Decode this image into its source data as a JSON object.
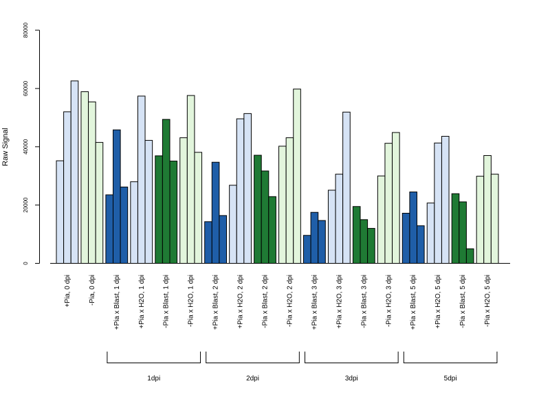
{
  "chart_data": {
    "type": "bar",
    "ylabel": "Raw Signal",
    "ylim": [
      0,
      80000
    ],
    "yticks": [
      0,
      20000,
      40000,
      60000,
      80000
    ],
    "colors": {
      "pia_pos_light": "#d6e3f5",
      "pia_neg_light": "#e2f5dc",
      "pia_pos_dark": "#1f5ea8",
      "pia_neg_dark": "#1f7a34"
    },
    "groups": [
      {
        "label": "+Pia, 0 dpi",
        "color": "pia_pos_light",
        "values": [
          35200,
          52000,
          62600
        ]
      },
      {
        "label": "-Pia, 0 dpi",
        "color": "pia_neg_light",
        "values": [
          58900,
          55400,
          41500
        ]
      },
      {
        "label": "+Pia x Blast, 1 dpi",
        "color": "pia_pos_dark",
        "values": [
          23500,
          45800,
          26200
        ]
      },
      {
        "label": "+Pia x H2O, 1 dpi",
        "color": "pia_pos_light",
        "values": [
          28000,
          57400,
          42200
        ]
      },
      {
        "label": "-Pia x Blast, 1 dpi",
        "color": "pia_neg_dark",
        "values": [
          36900,
          49400,
          35100
        ]
      },
      {
        "label": "-Pia x H2O, 1 dpi",
        "color": "pia_neg_light",
        "values": [
          43100,
          57600,
          38100
        ]
      },
      {
        "label": "+Pia x Blast, 2 dpi",
        "color": "pia_pos_dark",
        "values": [
          14300,
          34700,
          16400
        ]
      },
      {
        "label": "+Pia x H2O, 2 dpi",
        "color": "pia_pos_light",
        "values": [
          26800,
          49600,
          51400
        ]
      },
      {
        "label": "-Pia x Blast, 2 dpi",
        "color": "pia_neg_dark",
        "values": [
          37100,
          31700,
          22900
        ]
      },
      {
        "label": "-Pia x H2O, 2 dpi",
        "color": "pia_neg_light",
        "values": [
          40200,
          43100,
          59800
        ]
      },
      {
        "label": "+Pia x Blast, 3 dpi",
        "color": "pia_pos_dark",
        "values": [
          9600,
          17500,
          14700
        ]
      },
      {
        "label": "+Pia x H2O, 3 dpi",
        "color": "pia_pos_light",
        "values": [
          25100,
          30600,
          51900
        ]
      },
      {
        "label": "-Pia x Blast, 3 dpi",
        "color": "pia_neg_dark",
        "values": [
          19500,
          15000,
          12000
        ]
      },
      {
        "label": "-Pia x H2O, 3 dpi",
        "color": "pia_neg_light",
        "values": [
          30000,
          41200,
          44900
        ]
      },
      {
        "label": "+Pia x Blast, 5 dpi",
        "color": "pia_pos_dark",
        "values": [
          17200,
          24500,
          12900
        ]
      },
      {
        "label": "+Pia x H2O, 5 dpi",
        "color": "pia_pos_light",
        "values": [
          20700,
          41300,
          43600
        ]
      },
      {
        "label": "-Pia x Blast, 5 dpi",
        "color": "pia_neg_dark",
        "values": [
          23900,
          21100,
          5000
        ]
      },
      {
        "label": "-Pia x H2O, 5 dpi",
        "color": "pia_neg_light",
        "values": [
          29900,
          37000,
          30600
        ]
      }
    ],
    "brackets": [
      {
        "label": "1dpi",
        "first_group": 2,
        "last_group": 5
      },
      {
        "label": "2dpi",
        "first_group": 6,
        "last_group": 9
      },
      {
        "label": "3dpi",
        "first_group": 10,
        "last_group": 13
      },
      {
        "label": "5dpi",
        "first_group": 14,
        "last_group": 17
      }
    ]
  }
}
